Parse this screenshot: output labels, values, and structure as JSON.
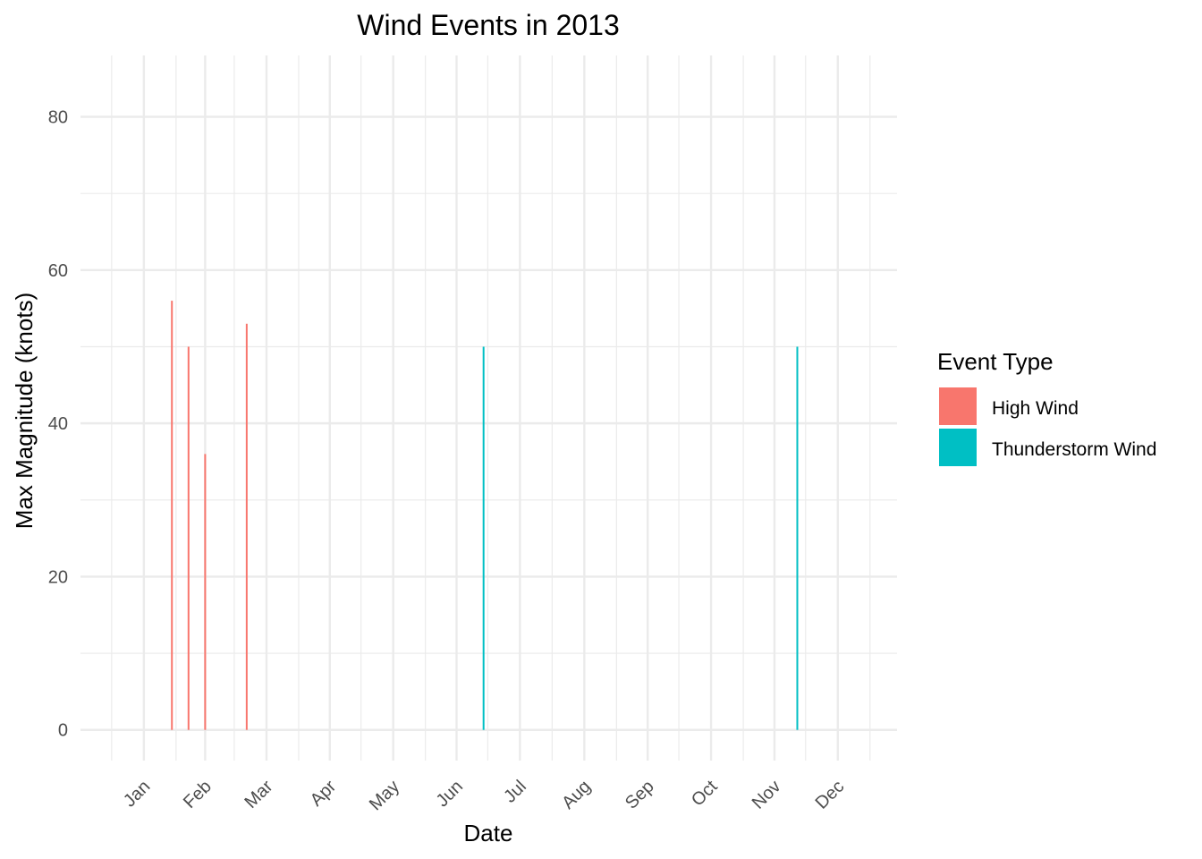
{
  "chart_data": {
    "type": "bar",
    "title": "Wind Events in 2013",
    "xlabel": "Date",
    "ylabel": "Max Magnitude (knots)",
    "x_axis_kind": "date",
    "x_ticks": [
      "Jan",
      "Feb",
      "Mar",
      "Apr",
      "May",
      "Jun",
      "Jul",
      "Aug",
      "Sep",
      "Oct",
      "Nov",
      "Dec"
    ],
    "y_ticks": [
      0,
      20,
      40,
      60,
      80
    ],
    "ylim": [
      -4,
      88
    ],
    "xlim": [
      "2012-12-17",
      "2014-01-14"
    ],
    "grid": true,
    "legend": {
      "title": "Event Type",
      "position": "right",
      "entries": [
        {
          "label": "High Wind",
          "color": "#F8766D"
        },
        {
          "label": "Thunderstorm Wind",
          "color": "#00BFC4"
        }
      ]
    },
    "series": [
      {
        "name": "High Wind",
        "color": "#F8766D",
        "points": [
          {
            "x": "2013-01-30",
            "y": 56
          },
          {
            "x": "2013-02-07",
            "y": 50
          },
          {
            "x": "2013-02-15",
            "y": 36
          },
          {
            "x": "2013-03-07",
            "y": 53
          }
        ]
      },
      {
        "name": "Thunderstorm Wind",
        "color": "#00BFC4",
        "points": [
          {
            "x": "2013-06-29",
            "y": 50
          },
          {
            "x": "2013-11-27",
            "y": 50
          }
        ]
      }
    ]
  }
}
